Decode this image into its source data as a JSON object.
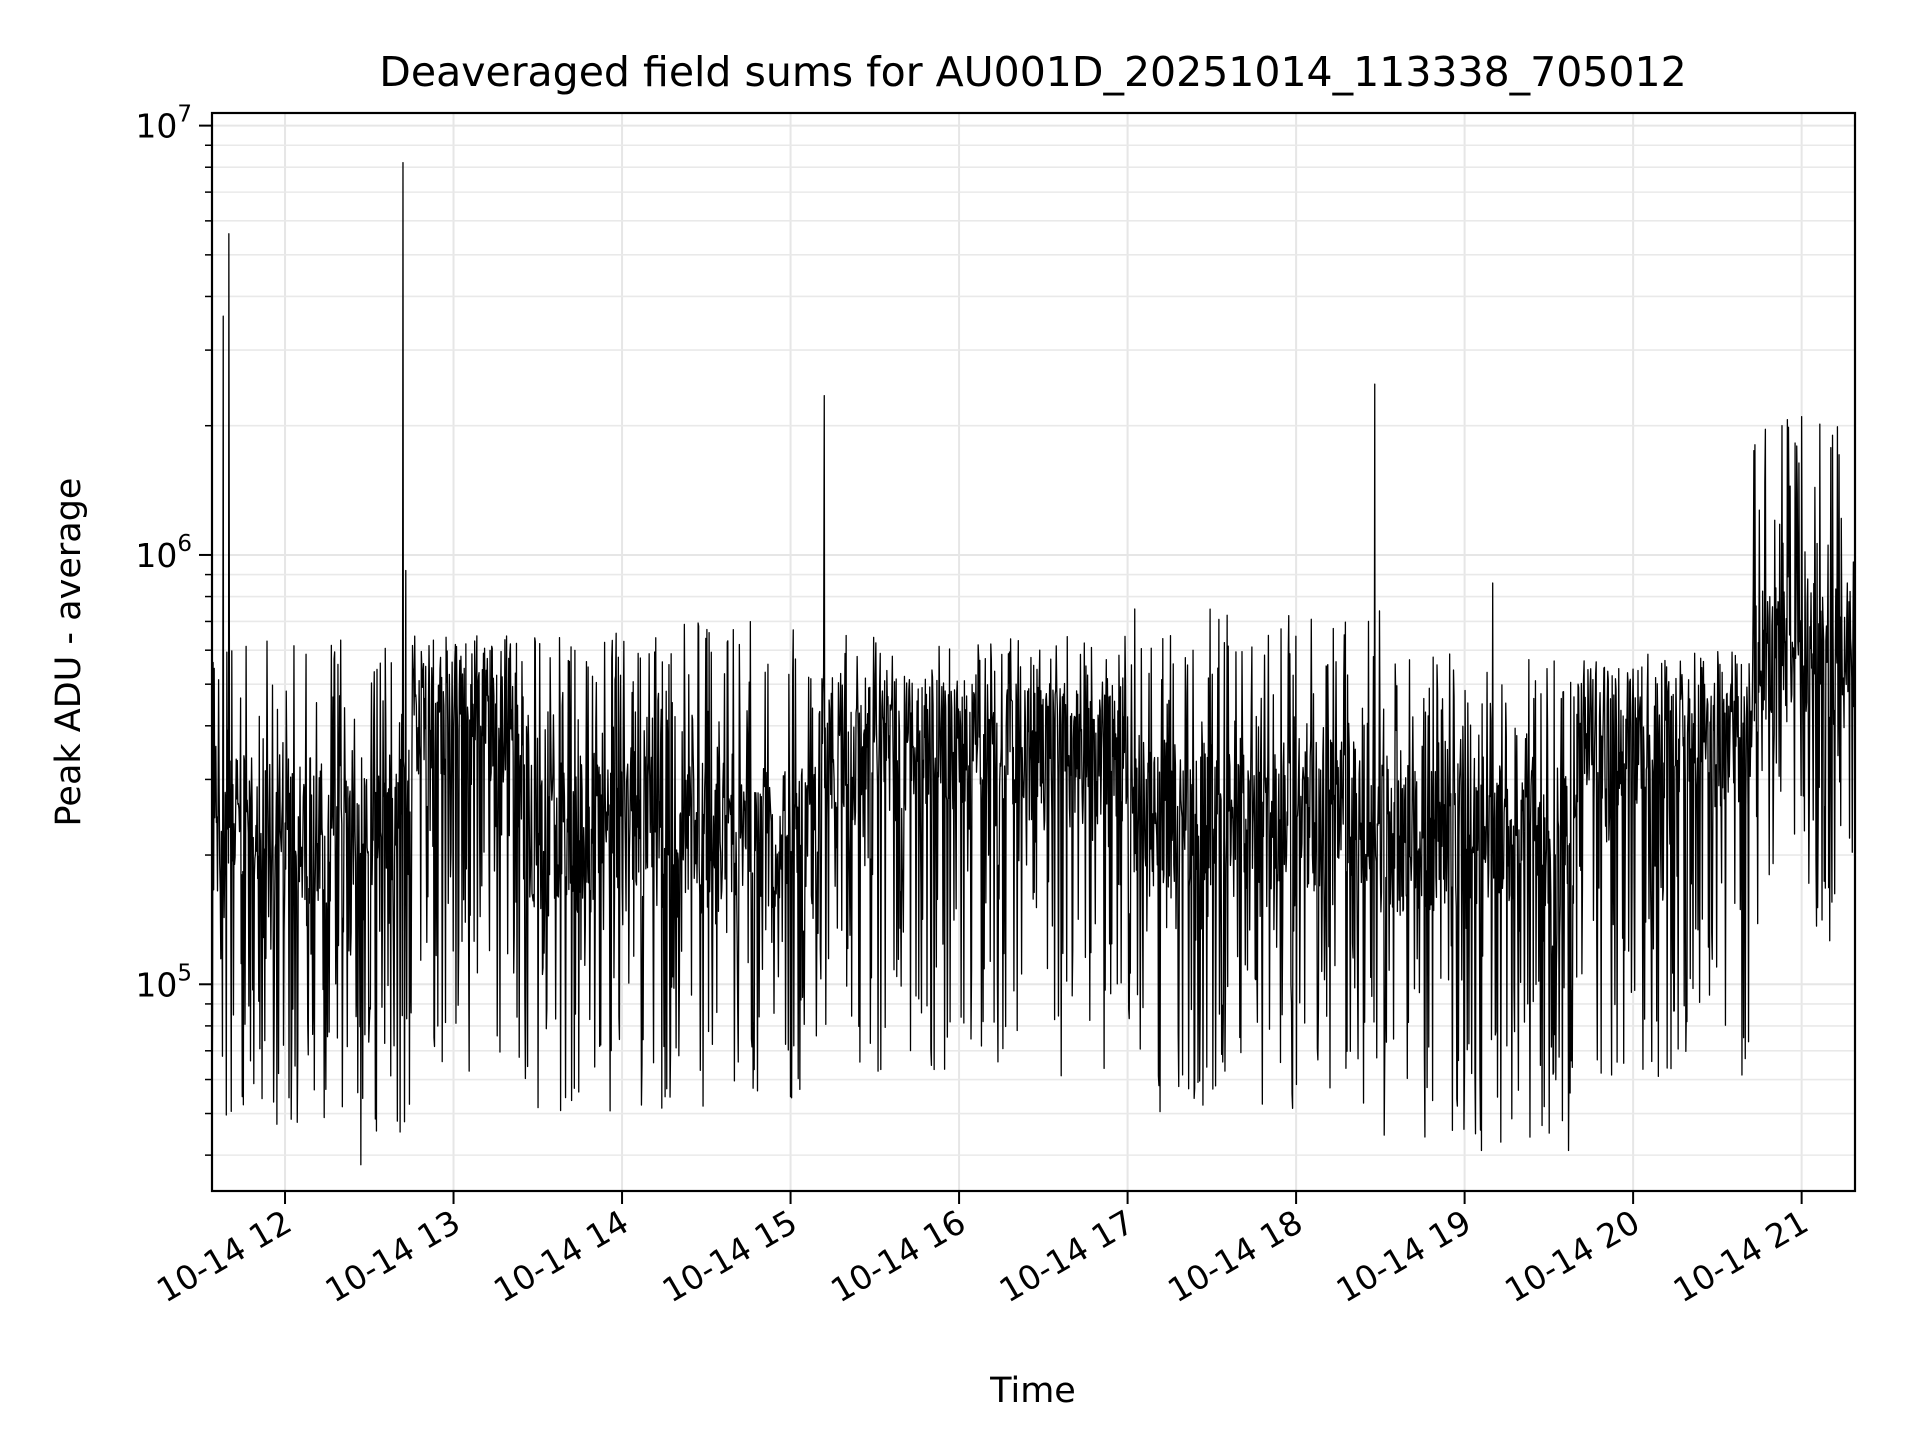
{
  "chart_data": {
    "type": "line",
    "title": "Deaveraged field sums for AU001D_20251014_113338_705012",
    "xlabel": "Time",
    "ylabel": "Peak ADU - average",
    "yscale": "log",
    "ylim": [
      33000,
      10700000
    ],
    "xlim": [
      "2025-10-14 11:34",
      "2025-10-14 21:19"
    ],
    "grid": true,
    "line_color": "#000000",
    "x_ticks": [
      {
        "x": "2025-10-14 12:00",
        "label": "10-14 12"
      },
      {
        "x": "2025-10-14 13:00",
        "label": "10-14 13"
      },
      {
        "x": "2025-10-14 14:00",
        "label": "10-14 14"
      },
      {
        "x": "2025-10-14 15:00",
        "label": "10-14 15"
      },
      {
        "x": "2025-10-14 16:00",
        "label": "10-14 16"
      },
      {
        "x": "2025-10-14 17:00",
        "label": "10-14 17"
      },
      {
        "x": "2025-10-14 18:00",
        "label": "10-14 18"
      },
      {
        "x": "2025-10-14 19:00",
        "label": "10-14 19"
      },
      {
        "x": "2025-10-14 20:00",
        "label": "10-14 20"
      },
      {
        "x": "2025-10-14 21:00",
        "label": "10-14 21"
      }
    ],
    "y_ticks": [
      {
        "value": 100000,
        "base": "10",
        "exp": "5"
      },
      {
        "value": 1000000,
        "base": "10",
        "exp": "6"
      },
      {
        "value": 10000000,
        "base": "10",
        "exp": "7"
      }
    ],
    "series": [
      {
        "color": "#000000",
        "segments": [
          {
            "start": "2025-10-14 11:34",
            "end": "2025-10-14 12:45",
            "median": 230000,
            "low": 45000,
            "high": 650000
          },
          {
            "start": "2025-10-14 12:45",
            "end": "2025-10-14 13:25",
            "median": 430000,
            "low": 60000,
            "high": 650000
          },
          {
            "start": "2025-10-14 13:25",
            "end": "2025-10-14 15:10",
            "median": 220000,
            "low": 50000,
            "high": 700000
          },
          {
            "start": "2025-10-14 15:10",
            "end": "2025-10-14 17:00",
            "median": 350000,
            "low": 60000,
            "high": 650000
          },
          {
            "start": "2025-10-14 17:00",
            "end": "2025-10-14 18:30",
            "median": 250000,
            "low": 50000,
            "high": 750000
          },
          {
            "start": "2025-10-14 18:30",
            "end": "2025-10-14 19:40",
            "median": 220000,
            "low": 42000,
            "high": 600000
          },
          {
            "start": "2025-10-14 19:40",
            "end": "2025-10-14 20:42",
            "median": 380000,
            "low": 60000,
            "high": 600000
          },
          {
            "start": "2025-10-14 20:42",
            "end": "2025-10-14 21:19",
            "median": 600000,
            "low": 120000,
            "high": 2100000
          }
        ],
        "peaks": [
          {
            "x": "2025-10-14 11:34",
            "y": 45000
          },
          {
            "x": "2025-10-14 11:38",
            "y": 3600000
          },
          {
            "x": "2025-10-14 11:40",
            "y": 5600000
          },
          {
            "x": "2025-10-14 12:27",
            "y": 38000
          },
          {
            "x": "2025-10-14 12:42",
            "y": 8200000
          },
          {
            "x": "2025-10-14 12:43",
            "y": 920000
          },
          {
            "x": "2025-10-14 15:12",
            "y": 2350000
          },
          {
            "x": "2025-10-14 18:28",
            "y": 2500000
          },
          {
            "x": "2025-10-14 19:06",
            "y": 41000
          },
          {
            "x": "2025-10-14 19:10",
            "y": 860000
          },
          {
            "x": "2025-10-14 19:37",
            "y": 41000
          },
          {
            "x": "2025-10-14 20:43",
            "y": 1750000
          },
          {
            "x": "2025-10-14 20:53",
            "y": 2000000
          },
          {
            "x": "2025-10-14 21:00",
            "y": 2100000
          },
          {
            "x": "2025-10-14 21:11",
            "y": 1900000
          }
        ]
      }
    ]
  }
}
